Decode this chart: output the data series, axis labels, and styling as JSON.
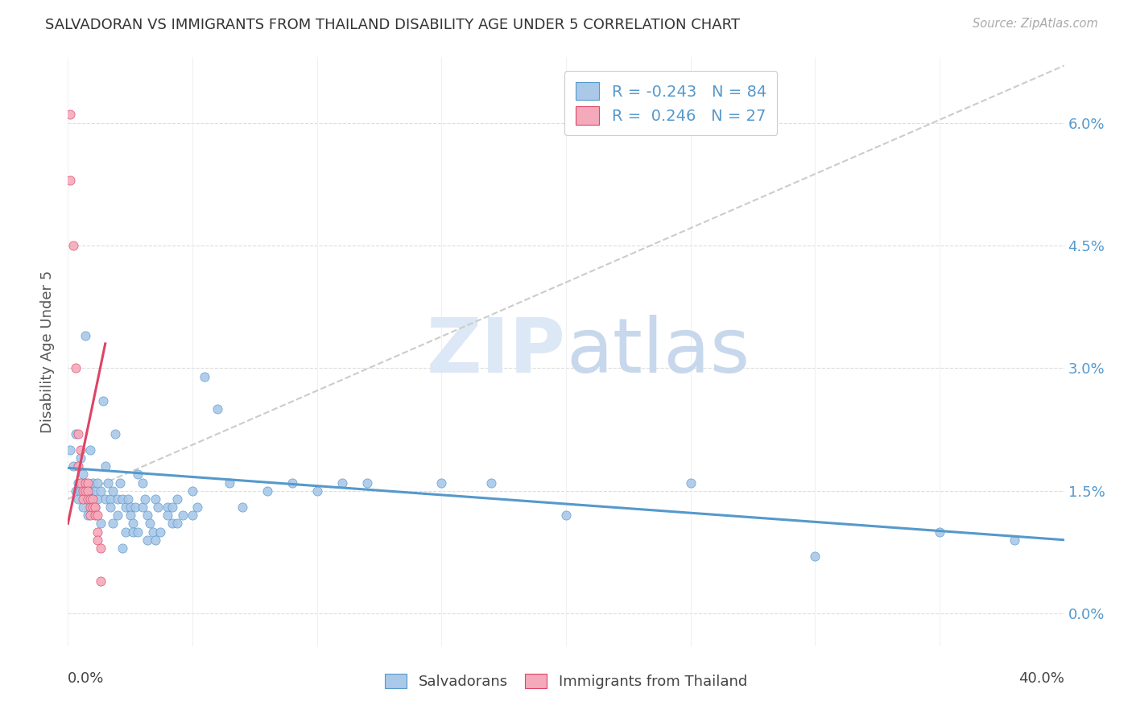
{
  "title": "SALVADORAN VS IMMIGRANTS FROM THAILAND DISABILITY AGE UNDER 5 CORRELATION CHART",
  "source": "Source: ZipAtlas.com",
  "ylabel": "Disability Age Under 5",
  "ytick_vals": [
    0.0,
    0.015,
    0.03,
    0.045,
    0.06
  ],
  "ytick_labels": [
    "0.0%",
    "1.5%",
    "3.0%",
    "4.5%",
    "6.0%"
  ],
  "xmin": 0.0,
  "xmax": 0.4,
  "ymin": -0.004,
  "ymax": 0.068,
  "legend_blue_r": "-0.243",
  "legend_blue_n": "84",
  "legend_pink_r": " 0.246",
  "legend_pink_n": "27",
  "blue_color": "#aac8e8",
  "pink_color": "#f4aabb",
  "trendline_blue_color": "#5599cc",
  "trendline_pink_color": "#dd4466",
  "trendline_dashed_color": "#cccccc",
  "watermark_color": "#dce8f5",
  "blue_scatter": [
    [
      0.001,
      0.02
    ],
    [
      0.002,
      0.018
    ],
    [
      0.003,
      0.022
    ],
    [
      0.003,
      0.015
    ],
    [
      0.004,
      0.016
    ],
    [
      0.004,
      0.014
    ],
    [
      0.005,
      0.019
    ],
    [
      0.005,
      0.015
    ],
    [
      0.006,
      0.017
    ],
    [
      0.006,
      0.013
    ],
    [
      0.007,
      0.034
    ],
    [
      0.008,
      0.015
    ],
    [
      0.008,
      0.012
    ],
    [
      0.009,
      0.02
    ],
    [
      0.009,
      0.015
    ],
    [
      0.01,
      0.014
    ],
    [
      0.01,
      0.016
    ],
    [
      0.011,
      0.015
    ],
    [
      0.011,
      0.013
    ],
    [
      0.012,
      0.014
    ],
    [
      0.012,
      0.016
    ],
    [
      0.013,
      0.015
    ],
    [
      0.013,
      0.011
    ],
    [
      0.014,
      0.026
    ],
    [
      0.015,
      0.018
    ],
    [
      0.015,
      0.014
    ],
    [
      0.016,
      0.016
    ],
    [
      0.017,
      0.014
    ],
    [
      0.017,
      0.013
    ],
    [
      0.018,
      0.015
    ],
    [
      0.018,
      0.011
    ],
    [
      0.019,
      0.022
    ],
    [
      0.02,
      0.014
    ],
    [
      0.02,
      0.012
    ],
    [
      0.021,
      0.016
    ],
    [
      0.022,
      0.008
    ],
    [
      0.022,
      0.014
    ],
    [
      0.023,
      0.013
    ],
    [
      0.023,
      0.01
    ],
    [
      0.024,
      0.014
    ],
    [
      0.025,
      0.013
    ],
    [
      0.025,
      0.012
    ],
    [
      0.026,
      0.011
    ],
    [
      0.026,
      0.01
    ],
    [
      0.027,
      0.013
    ],
    [
      0.028,
      0.017
    ],
    [
      0.028,
      0.01
    ],
    [
      0.03,
      0.016
    ],
    [
      0.03,
      0.013
    ],
    [
      0.031,
      0.014
    ],
    [
      0.032,
      0.012
    ],
    [
      0.032,
      0.009
    ],
    [
      0.033,
      0.011
    ],
    [
      0.034,
      0.01
    ],
    [
      0.035,
      0.014
    ],
    [
      0.035,
      0.009
    ],
    [
      0.036,
      0.013
    ],
    [
      0.037,
      0.01
    ],
    [
      0.04,
      0.013
    ],
    [
      0.04,
      0.012
    ],
    [
      0.042,
      0.013
    ],
    [
      0.042,
      0.011
    ],
    [
      0.044,
      0.014
    ],
    [
      0.044,
      0.011
    ],
    [
      0.046,
      0.012
    ],
    [
      0.05,
      0.015
    ],
    [
      0.05,
      0.012
    ],
    [
      0.052,
      0.013
    ],
    [
      0.055,
      0.029
    ],
    [
      0.06,
      0.025
    ],
    [
      0.065,
      0.016
    ],
    [
      0.07,
      0.013
    ],
    [
      0.08,
      0.015
    ],
    [
      0.09,
      0.016
    ],
    [
      0.1,
      0.015
    ],
    [
      0.11,
      0.016
    ],
    [
      0.12,
      0.016
    ],
    [
      0.15,
      0.016
    ],
    [
      0.17,
      0.016
    ],
    [
      0.2,
      0.012
    ],
    [
      0.25,
      0.016
    ],
    [
      0.3,
      0.007
    ],
    [
      0.35,
      0.01
    ],
    [
      0.38,
      0.009
    ]
  ],
  "pink_scatter": [
    [
      0.001,
      0.061
    ],
    [
      0.001,
      0.053
    ],
    [
      0.002,
      0.045
    ],
    [
      0.003,
      0.03
    ],
    [
      0.004,
      0.022
    ],
    [
      0.004,
      0.018
    ],
    [
      0.005,
      0.02
    ],
    [
      0.005,
      0.016
    ],
    [
      0.006,
      0.015
    ],
    [
      0.006,
      0.014
    ],
    [
      0.007,
      0.016
    ],
    [
      0.007,
      0.015
    ],
    [
      0.008,
      0.016
    ],
    [
      0.008,
      0.015
    ],
    [
      0.008,
      0.014
    ],
    [
      0.009,
      0.013
    ],
    [
      0.009,
      0.014
    ],
    [
      0.009,
      0.012
    ],
    [
      0.01,
      0.014
    ],
    [
      0.01,
      0.013
    ],
    [
      0.011,
      0.013
    ],
    [
      0.011,
      0.012
    ],
    [
      0.012,
      0.012
    ],
    [
      0.012,
      0.01
    ],
    [
      0.012,
      0.009
    ],
    [
      0.013,
      0.008
    ],
    [
      0.013,
      0.004
    ]
  ],
  "blue_trend_x": [
    0.0,
    0.4
  ],
  "blue_trend_y": [
    0.0178,
    0.009
  ],
  "pink_trend_x": [
    0.0,
    0.015
  ],
  "pink_trend_y": [
    0.011,
    0.033
  ],
  "dashed_trend_x": [
    0.0,
    0.4
  ],
  "dashed_trend_y": [
    0.014,
    0.067
  ]
}
